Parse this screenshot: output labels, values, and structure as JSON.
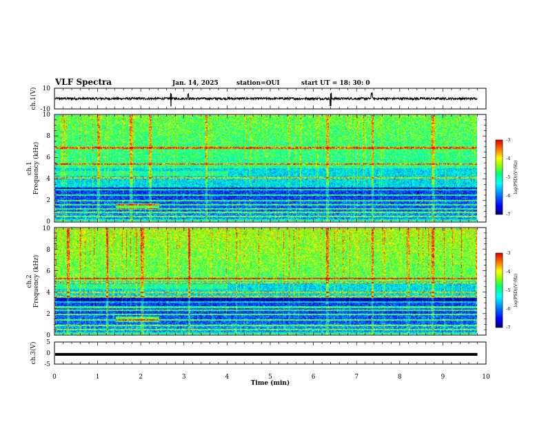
{
  "header": {
    "title": "VLF Spectra",
    "date": "Jan. 14, 2025",
    "station": "station=OUI",
    "start": "start UT =  18: 30: 0"
  },
  "colors": {
    "trace": "#000000",
    "background": "#ffffff",
    "colormap": [
      "#000080",
      "#0000ff",
      "#00bfff",
      "#00ffff",
      "#00ff80",
      "#80ff00",
      "#ffff00",
      "#ff8000",
      "#ff0000",
      "#ffffff"
    ]
  },
  "chart_data": [
    {
      "type": "line",
      "panel": "ch1-waveform",
      "ylabel": "ch.1(V)",
      "ylim": [
        -10,
        10
      ],
      "yticks": [
        "10",
        "-10"
      ],
      "xlim": [
        0,
        10
      ],
      "x_end": 9.8,
      "series": [
        {
          "baseline": 0,
          "amplitude": 1,
          "spikes": [
            2.7,
            3.1,
            6.4,
            7.35
          ]
        }
      ]
    },
    {
      "type": "heatmap",
      "panel": "ch1-spectrogram",
      "ylabel": "ch.1\nFrequency (kHz)",
      "ylim": [
        0,
        10
      ],
      "yticks": [
        "0",
        "2",
        "4",
        "6",
        "8",
        "10"
      ],
      "xlim": [
        0,
        10
      ],
      "x_end": 9.8,
      "colorbar": {
        "range": [
          -7,
          -3
        ],
        "ticks": [
          "-3",
          "-4",
          "-5",
          "-6",
          "-7"
        ],
        "label": "log(PSD)(V²/Hz)"
      },
      "features": {
        "horizontal_lines_khz": [
          0.5,
          0.9,
          1.2,
          1.6,
          2.0,
          2.5,
          3.0,
          3.3,
          3.4,
          4.1,
          5.4,
          6.9,
          7.0
        ],
        "strong_bursts_min": [
          1.0,
          1.75,
          2.2,
          3.5,
          6.3,
          7.35,
          8.75
        ]
      }
    },
    {
      "type": "heatmap",
      "panel": "ch2-spectrogram",
      "ylabel": "ch.2\nFrequency (kHz)",
      "ylim": [
        0,
        10
      ],
      "yticks": [
        "0",
        "2",
        "4",
        "6",
        "8",
        "10"
      ],
      "xlim": [
        0,
        10
      ],
      "x_end": 9.8,
      "colorbar": {
        "range": [
          -7,
          -3
        ],
        "ticks": [
          "-3",
          "-4",
          "-5",
          "-6",
          "-7"
        ],
        "label": "log(PSD)(V²/Hz)"
      },
      "features": {
        "horizontal_lines_khz": [
          0.5,
          0.9,
          1.4,
          1.9,
          2.3,
          2.6,
          3.1,
          3.6,
          4.0,
          4.9,
          5.3
        ],
        "strong_bursts_min": [
          0.3,
          1.2,
          2.0,
          3.1,
          6.3,
          7.35,
          8.75
        ]
      }
    },
    {
      "type": "line",
      "panel": "ch3-waveform",
      "ylabel": "ch.3(V)",
      "ylim": [
        -5,
        5
      ],
      "yticks": [
        "5",
        "0",
        "-5"
      ],
      "xlim": [
        0,
        10
      ],
      "x_end": 9.8,
      "xlabel": "Time (min)",
      "xticks": [
        "0",
        "1",
        "2",
        "3",
        "4",
        "5",
        "6",
        "7",
        "8",
        "9",
        "10"
      ],
      "series": [
        {
          "constant": -0.6
        }
      ]
    }
  ]
}
